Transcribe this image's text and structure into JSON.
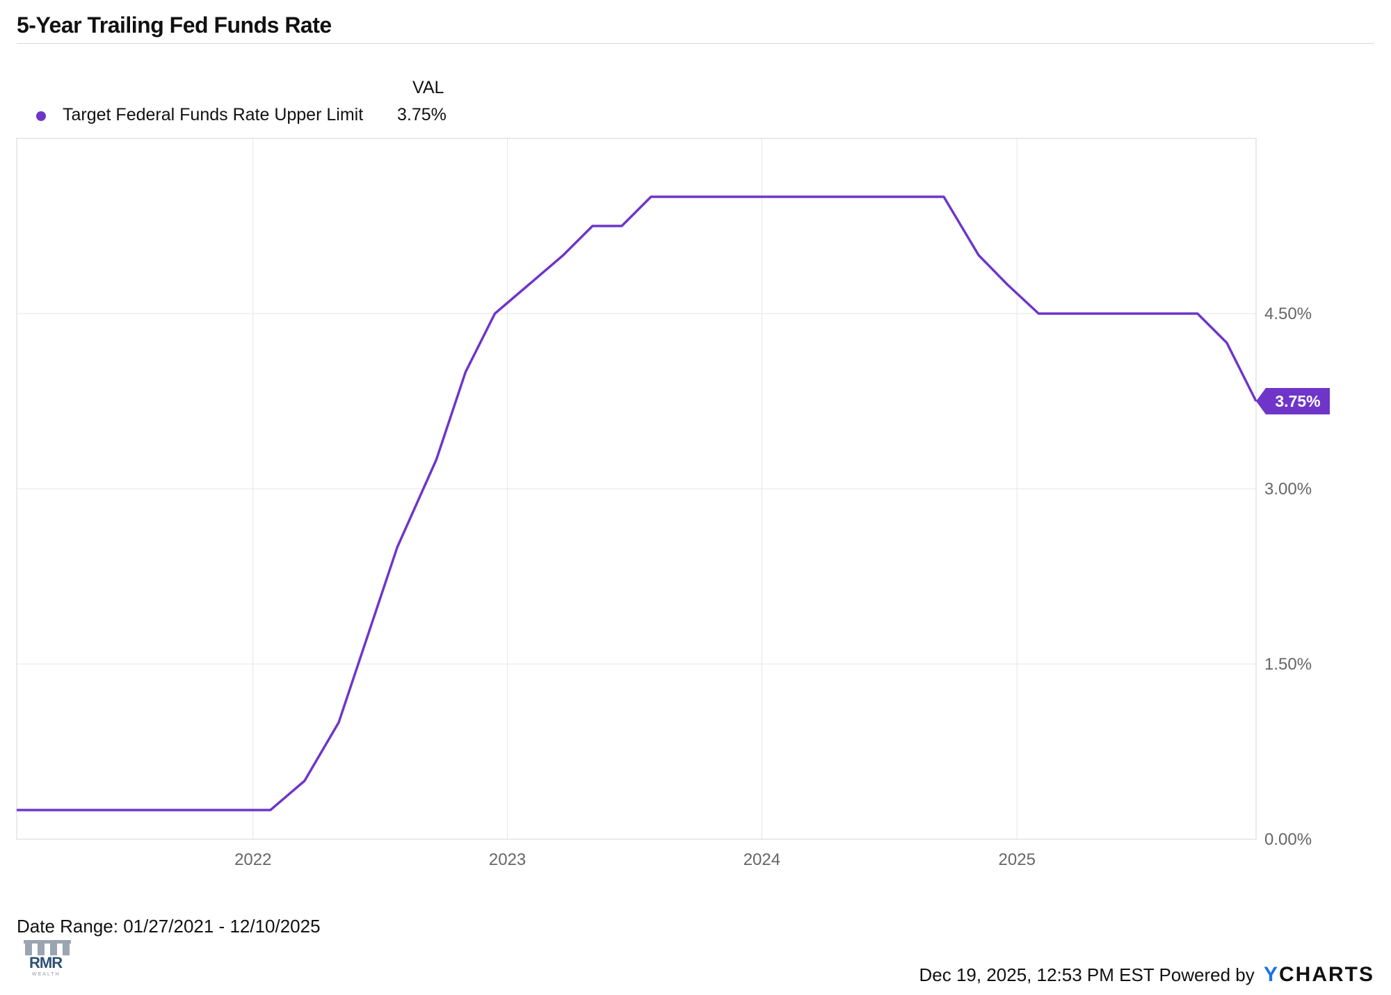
{
  "header": {
    "title": "5-Year Trailing Fed Funds Rate"
  },
  "legend": {
    "column_header": "VAL",
    "items": [
      {
        "name": "Target Federal Funds Rate Upper Limit",
        "value": "3.75%",
        "color": "#6f35c9"
      }
    ]
  },
  "chart_data": {
    "type": "line",
    "title": "5-Year Trailing Fed Funds Rate",
    "xlabel": "",
    "ylabel": "",
    "x_ticks": [
      "2022",
      "2023",
      "2024",
      "2025"
    ],
    "y_ticks": [
      "0.00%",
      "1.50%",
      "3.00%",
      "4.50%"
    ],
    "ylim": [
      0,
      6
    ],
    "xlim": [
      "2021-01-27",
      "2025-12-10"
    ],
    "grid": true,
    "legend_position": "top-left",
    "end_label": "3.75%",
    "series": [
      {
        "name": "Target Federal Funds Rate Upper Limit",
        "color": "#6f35c9",
        "points": [
          {
            "x": "2021-01-27",
            "y": 0.25
          },
          {
            "x": "2022-01-26",
            "y": 0.25
          },
          {
            "x": "2022-03-16",
            "y": 0.5
          },
          {
            "x": "2022-05-04",
            "y": 1.0
          },
          {
            "x": "2022-06-15",
            "y": 1.75
          },
          {
            "x": "2022-07-27",
            "y": 2.5
          },
          {
            "x": "2022-09-21",
            "y": 3.25
          },
          {
            "x": "2022-11-02",
            "y": 4.0
          },
          {
            "x": "2022-12-14",
            "y": 4.5
          },
          {
            "x": "2023-02-01",
            "y": 4.75
          },
          {
            "x": "2023-03-22",
            "y": 5.0
          },
          {
            "x": "2023-05-03",
            "y": 5.25
          },
          {
            "x": "2023-06-14",
            "y": 5.25
          },
          {
            "x": "2023-07-26",
            "y": 5.5
          },
          {
            "x": "2024-09-18",
            "y": 5.5
          },
          {
            "x": "2024-11-07",
            "y": 5.0
          },
          {
            "x": "2024-12-18",
            "y": 4.75
          },
          {
            "x": "2025-02-01",
            "y": 4.5
          },
          {
            "x": "2025-09-17",
            "y": 4.5
          },
          {
            "x": "2025-10-29",
            "y": 4.25
          },
          {
            "x": "2025-12-10",
            "y": 3.75
          }
        ]
      }
    ]
  },
  "footer": {
    "date_range": "Date Range: 01/27/2021 - 12/10/2025",
    "timestamp": "Dec 19, 2025, 12:53 PM EST Powered by",
    "brand_first": "Y",
    "brand_rest": "CHARTS",
    "brand_color": "#1a73e8",
    "logo_text": "RMR",
    "logo_sub": "WEALTH"
  }
}
